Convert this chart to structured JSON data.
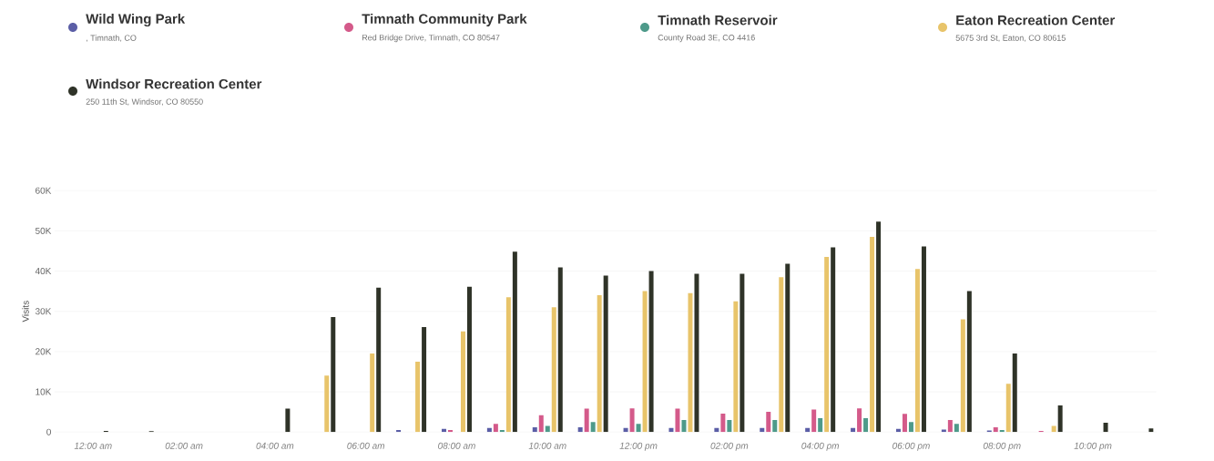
{
  "chart_data": {
    "type": "bar",
    "ylabel": "Visits",
    "grid": "y",
    "legend": "top",
    "categories": [
      "12:00 am",
      null,
      "02:00 am",
      null,
      "04:00 am",
      null,
      "06:00 am",
      null,
      "08:00 am",
      null,
      "10:00 am",
      null,
      "12:00 pm",
      null,
      "02:00 pm",
      null,
      "04:00 pm",
      null,
      "06:00 pm",
      null,
      "08:00 pm",
      null,
      "10:00 pm",
      null
    ],
    "series": [
      {
        "name": "Wild Wing Park",
        "color": "#5b5ea6",
        "values": [
          0,
          0,
          0,
          0,
          0,
          0,
          0,
          500,
          800,
          1000,
          1200,
          1200,
          1000,
          1000,
          1000,
          1000,
          1000,
          1000,
          800,
          600,
          400,
          0,
          0,
          0
        ]
      },
      {
        "name": "Timnath Community Park",
        "color": "#d45a8a",
        "values": [
          0,
          0,
          0,
          0,
          0,
          0,
          0,
          0,
          500,
          2000,
          4200,
          5800,
          5900,
          5800,
          4600,
          5000,
          5600,
          5900,
          4500,
          3000,
          1200,
          300,
          0,
          0
        ]
      },
      {
        "name": "Timnath Reservoir",
        "color": "#4e9a8a",
        "values": [
          0,
          0,
          0,
          0,
          0,
          0,
          0,
          0,
          0,
          500,
          1500,
          2500,
          2000,
          3000,
          3000,
          3000,
          3500,
          3500,
          2500,
          2000,
          500,
          0,
          0,
          0
        ]
      },
      {
        "name": "Eaton Recreation Center",
        "color": "#e8c46a",
        "values": [
          0,
          0,
          0,
          0,
          0,
          14000,
          19500,
          17500,
          25000,
          33500,
          31000,
          34000,
          35000,
          34500,
          32500,
          38500,
          43500,
          48500,
          40500,
          28000,
          12000,
          1500,
          0,
          0
        ]
      },
      {
        "name": "Windsor Recreation Center",
        "color": "#2f3328",
        "values": [
          300,
          200,
          null,
          null,
          5800,
          28600,
          35900,
          26100,
          36100,
          44800,
          40900,
          38900,
          40000,
          39300,
          39300,
          41800,
          45900,
          52300,
          46100,
          35000,
          19500,
          6600,
          2300,
          900
        ]
      }
    ],
    "ylim": [
      0,
      60000
    ],
    "yticks": [
      0,
      {
        "value": 10000,
        "label": "10K"
      },
      {
        "value": 20000,
        "label": "20K"
      },
      {
        "value": 30000,
        "label": "30K"
      },
      {
        "value": 40000,
        "label": "40K"
      },
      {
        "value": 50000,
        "label": "50K"
      },
      {
        "value": 60000,
        "label": "60K"
      }
    ],
    "annotations": [
      ", Timnath, CO",
      "Red Bridge Drive, Timnath, CO 80547",
      "County Road 3E, CO 4416",
      "5675 3rd St, Eaton, CO 80615",
      "250 11th St, Windsor, CO 80550"
    ]
  }
}
